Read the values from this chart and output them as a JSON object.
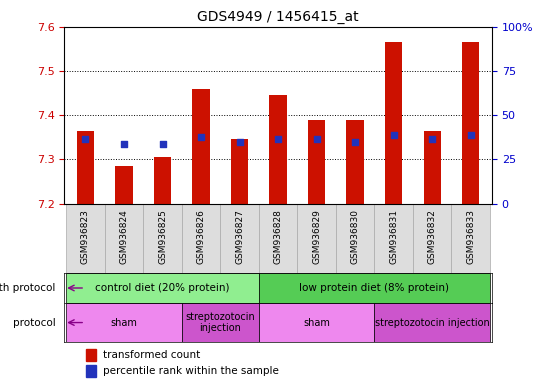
{
  "title": "GDS4949 / 1456415_at",
  "samples": [
    "GSM936823",
    "GSM936824",
    "GSM936825",
    "GSM936826",
    "GSM936827",
    "GSM936828",
    "GSM936829",
    "GSM936830",
    "GSM936831",
    "GSM936832",
    "GSM936833"
  ],
  "bar_bottom": 7.2,
  "red_values": [
    7.365,
    7.285,
    7.305,
    7.46,
    7.345,
    7.445,
    7.39,
    7.39,
    7.565,
    7.365,
    7.565
  ],
  "blue_values": [
    7.345,
    7.335,
    7.335,
    7.35,
    7.34,
    7.345,
    7.345,
    7.34,
    7.355,
    7.345,
    7.355
  ],
  "ylim_left": [
    7.2,
    7.6
  ],
  "ylim_right": [
    0,
    100
  ],
  "yticks_left": [
    7.2,
    7.3,
    7.4,
    7.5,
    7.6
  ],
  "yticks_right": [
    0,
    25,
    50,
    75,
    100
  ],
  "ytick_labels_right": [
    "0",
    "25",
    "50",
    "75",
    "100%"
  ],
  "left_color": "#cc0000",
  "right_color": "#0000cc",
  "blue_square_color": "#2233bb",
  "red_bar_color": "#cc1100",
  "grid_style": "dotted",
  "grid_color": "black",
  "growth_protocol_groups": [
    {
      "label": "control diet (20% protein)",
      "start": 0,
      "end": 5,
      "color": "#90ee90"
    },
    {
      "label": "low protein diet (8% protein)",
      "start": 5,
      "end": 11,
      "color": "#55cc55"
    }
  ],
  "protocol_groups": [
    {
      "label": "sham",
      "start": 0,
      "end": 3,
      "color": "#ee88ee"
    },
    {
      "label": "streptozotocin\ninjection",
      "start": 3,
      "end": 5,
      "color": "#cc55cc"
    },
    {
      "label": "sham",
      "start": 5,
      "end": 8,
      "color": "#ee88ee"
    },
    {
      "label": "streptozotocin injection",
      "start": 8,
      "end": 11,
      "color": "#cc55cc"
    }
  ],
  "fig_width": 5.59,
  "fig_height": 3.84,
  "dpi": 100
}
